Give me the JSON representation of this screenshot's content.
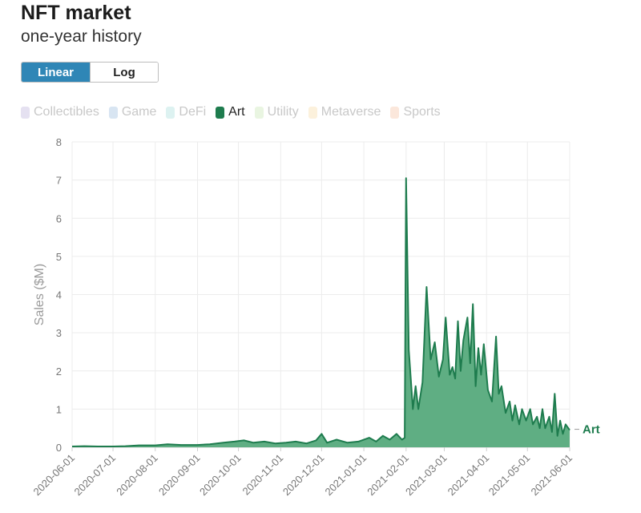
{
  "header": {
    "title": "NFT market",
    "subtitle": "one-year history"
  },
  "scale_toggle": {
    "linear_label": "Linear",
    "log_label": "Log",
    "selected": "Linear"
  },
  "legend": {
    "items": [
      {
        "label": "Collectibles",
        "color": "#a99bd1",
        "active": false
      },
      {
        "label": "Game",
        "color": "#7fa9d3",
        "active": false
      },
      {
        "label": "DeFi",
        "color": "#8fd3cf",
        "active": false
      },
      {
        "label": "Art",
        "color": "#1e7c4e",
        "active": true
      },
      {
        "label": "Utility",
        "color": "#b7dd9b",
        "active": false
      },
      {
        "label": "Metaverse",
        "color": "#f6cf8a",
        "active": false
      },
      {
        "label": "Sports",
        "color": "#f2b089",
        "active": false
      }
    ]
  },
  "chart_data": {
    "type": "area",
    "ylabel": "Sales ($M)",
    "xlabel": "",
    "ylim": [
      0,
      8
    ],
    "y_ticks": [
      0,
      1,
      2,
      3,
      4,
      5,
      6,
      7,
      8
    ],
    "grid": true,
    "x_ticks": [
      "2020-06-01",
      "2020-07-01",
      "2020-08-01",
      "2020-09-01",
      "2020-10-01",
      "2020-11-01",
      "2020-12-01",
      "2021-01-01",
      "2021-02-01",
      "2021-03-01",
      "2021-04-01",
      "2021-05-01",
      "2021-06-01"
    ],
    "series": [
      {
        "name": "Art",
        "color": "#1e7c4e",
        "fill": "#5fae83",
        "points": [
          [
            "2020-06-01",
            0.02
          ],
          [
            "2020-06-10",
            0.03
          ],
          [
            "2020-06-20",
            0.02
          ],
          [
            "2020-07-01",
            0.02
          ],
          [
            "2020-07-10",
            0.03
          ],
          [
            "2020-07-20",
            0.05
          ],
          [
            "2020-08-01",
            0.05
          ],
          [
            "2020-08-10",
            0.08
          ],
          [
            "2020-08-20",
            0.06
          ],
          [
            "2020-09-01",
            0.06
          ],
          [
            "2020-09-10",
            0.08
          ],
          [
            "2020-09-20",
            0.12
          ],
          [
            "2020-09-28",
            0.15
          ],
          [
            "2020-10-05",
            0.18
          ],
          [
            "2020-10-12",
            0.12
          ],
          [
            "2020-10-20",
            0.15
          ],
          [
            "2020-10-28",
            0.1
          ],
          [
            "2020-11-05",
            0.12
          ],
          [
            "2020-11-12",
            0.15
          ],
          [
            "2020-11-20",
            0.1
          ],
          [
            "2020-11-27",
            0.18
          ],
          [
            "2020-12-01",
            0.35
          ],
          [
            "2020-12-05",
            0.12
          ],
          [
            "2020-12-12",
            0.2
          ],
          [
            "2020-12-20",
            0.12
          ],
          [
            "2020-12-28",
            0.15
          ],
          [
            "2021-01-05",
            0.25
          ],
          [
            "2021-01-10",
            0.15
          ],
          [
            "2021-01-15",
            0.3
          ],
          [
            "2021-01-20",
            0.2
          ],
          [
            "2021-01-25",
            0.35
          ],
          [
            "2021-01-29",
            0.2
          ],
          [
            "2021-01-31",
            0.25
          ],
          [
            "2021-02-01",
            7.05
          ],
          [
            "2021-02-03",
            2.55
          ],
          [
            "2021-02-06",
            1.0
          ],
          [
            "2021-02-08",
            1.6
          ],
          [
            "2021-02-10",
            1.0
          ],
          [
            "2021-02-13",
            1.7
          ],
          [
            "2021-02-16",
            4.2
          ],
          [
            "2021-02-19",
            2.3
          ],
          [
            "2021-02-22",
            2.75
          ],
          [
            "2021-02-25",
            1.85
          ],
          [
            "2021-02-28",
            2.3
          ],
          [
            "2021-03-02",
            3.4
          ],
          [
            "2021-03-05",
            1.9
          ],
          [
            "2021-03-07",
            2.1
          ],
          [
            "2021-03-09",
            1.8
          ],
          [
            "2021-03-11",
            3.3
          ],
          [
            "2021-03-13",
            2.0
          ],
          [
            "2021-03-15",
            2.8
          ],
          [
            "2021-03-18",
            3.4
          ],
          [
            "2021-03-20",
            2.2
          ],
          [
            "2021-03-22",
            3.75
          ],
          [
            "2021-03-24",
            1.6
          ],
          [
            "2021-03-26",
            2.6
          ],
          [
            "2021-03-28",
            1.9
          ],
          [
            "2021-03-30",
            2.7
          ],
          [
            "2021-04-02",
            1.5
          ],
          [
            "2021-04-05",
            1.2
          ],
          [
            "2021-04-08",
            2.9
          ],
          [
            "2021-04-10",
            1.4
          ],
          [
            "2021-04-12",
            1.6
          ],
          [
            "2021-04-15",
            0.9
          ],
          [
            "2021-04-18",
            1.2
          ],
          [
            "2021-04-20",
            0.7
          ],
          [
            "2021-04-22",
            1.1
          ],
          [
            "2021-04-25",
            0.6
          ],
          [
            "2021-04-27",
            1.0
          ],
          [
            "2021-04-30",
            0.7
          ],
          [
            "2021-05-03",
            1.0
          ],
          [
            "2021-05-05",
            0.6
          ],
          [
            "2021-05-08",
            0.8
          ],
          [
            "2021-05-10",
            0.5
          ],
          [
            "2021-05-12",
            1.0
          ],
          [
            "2021-05-14",
            0.5
          ],
          [
            "2021-05-17",
            0.8
          ],
          [
            "2021-05-19",
            0.4
          ],
          [
            "2021-05-21",
            1.4
          ],
          [
            "2021-05-23",
            0.3
          ],
          [
            "2021-05-25",
            0.7
          ],
          [
            "2021-05-27",
            0.35
          ],
          [
            "2021-05-29",
            0.6
          ],
          [
            "2021-06-01",
            0.45
          ]
        ]
      }
    ]
  }
}
